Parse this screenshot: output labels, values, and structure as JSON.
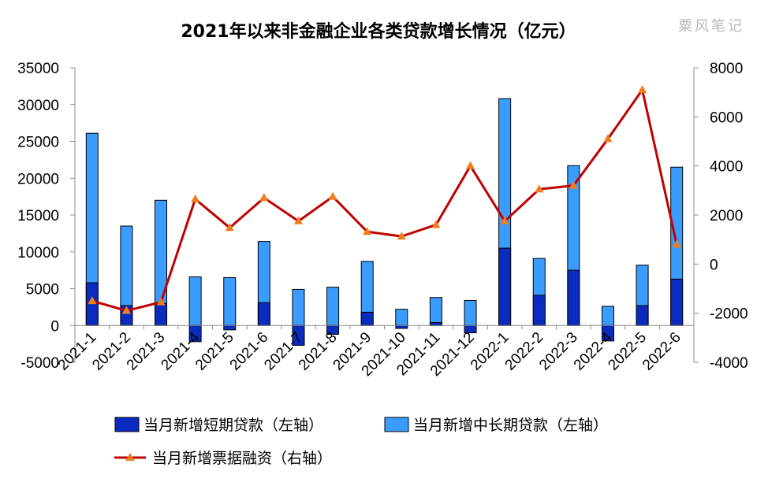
{
  "chart_data": {
    "type": "bar",
    "title": "2021年以来非金融企业各类贷款增长情况（亿元）",
    "watermark": "粟风笔记",
    "categories": [
      "2021-1",
      "2021-2",
      "2021-3",
      "2021-4",
      "2021-5",
      "2021-6",
      "2021-7",
      "2021-8",
      "2021-9",
      "2021-10",
      "2021-11",
      "2021-12",
      "2022-1",
      "2022-2",
      "2022-3",
      "2022-4",
      "2022-5",
      "2022-6"
    ],
    "series": [
      {
        "name": "当月新增短期贷款（左轴）",
        "type": "bar",
        "axis": "left",
        "stack": "base",
        "color": "#0a2bbf",
        "values": [
          5800,
          2700,
          3000,
          -2200,
          -600,
          3100,
          -2700,
          -1200,
          1800,
          -400,
          400,
          -1000,
          10500,
          4100,
          7500,
          -2100,
          2700,
          6300
        ]
      },
      {
        "name": "当月新增中长期贷款（左轴）",
        "type": "bar",
        "axis": "left",
        "stack": "total",
        "color": "#3b9cff",
        "values": [
          26100,
          13500,
          17000,
          6600,
          6500,
          11400,
          4900,
          5200,
          8700,
          2200,
          3800,
          3400,
          30800,
          9100,
          21700,
          2600,
          8200,
          21500
        ]
      },
      {
        "name": "当月新增票据融资（右轴）",
        "type": "line",
        "axis": "right",
        "color": "#c00000",
        "marker_color": "#f07d1e",
        "values": [
          -1500,
          -1900,
          -1550,
          2650,
          1480,
          2700,
          1750,
          2750,
          1320,
          1130,
          1600,
          4000,
          1750,
          3050,
          3200,
          5100,
          7100,
          800
        ]
      }
    ],
    "left_axis": {
      "min": -5000,
      "max": 35000,
      "ticks": [
        "-5000",
        "0",
        "5000",
        "10000",
        "15000",
        "20000",
        "25000",
        "30000",
        "35000"
      ]
    },
    "right_axis": {
      "min": -4000,
      "max": 8000,
      "ticks": [
        "-4000",
        "-2000",
        "0",
        "2000",
        "4000",
        "6000",
        "8000"
      ]
    },
    "grid": false,
    "legend_position": "bottom"
  }
}
